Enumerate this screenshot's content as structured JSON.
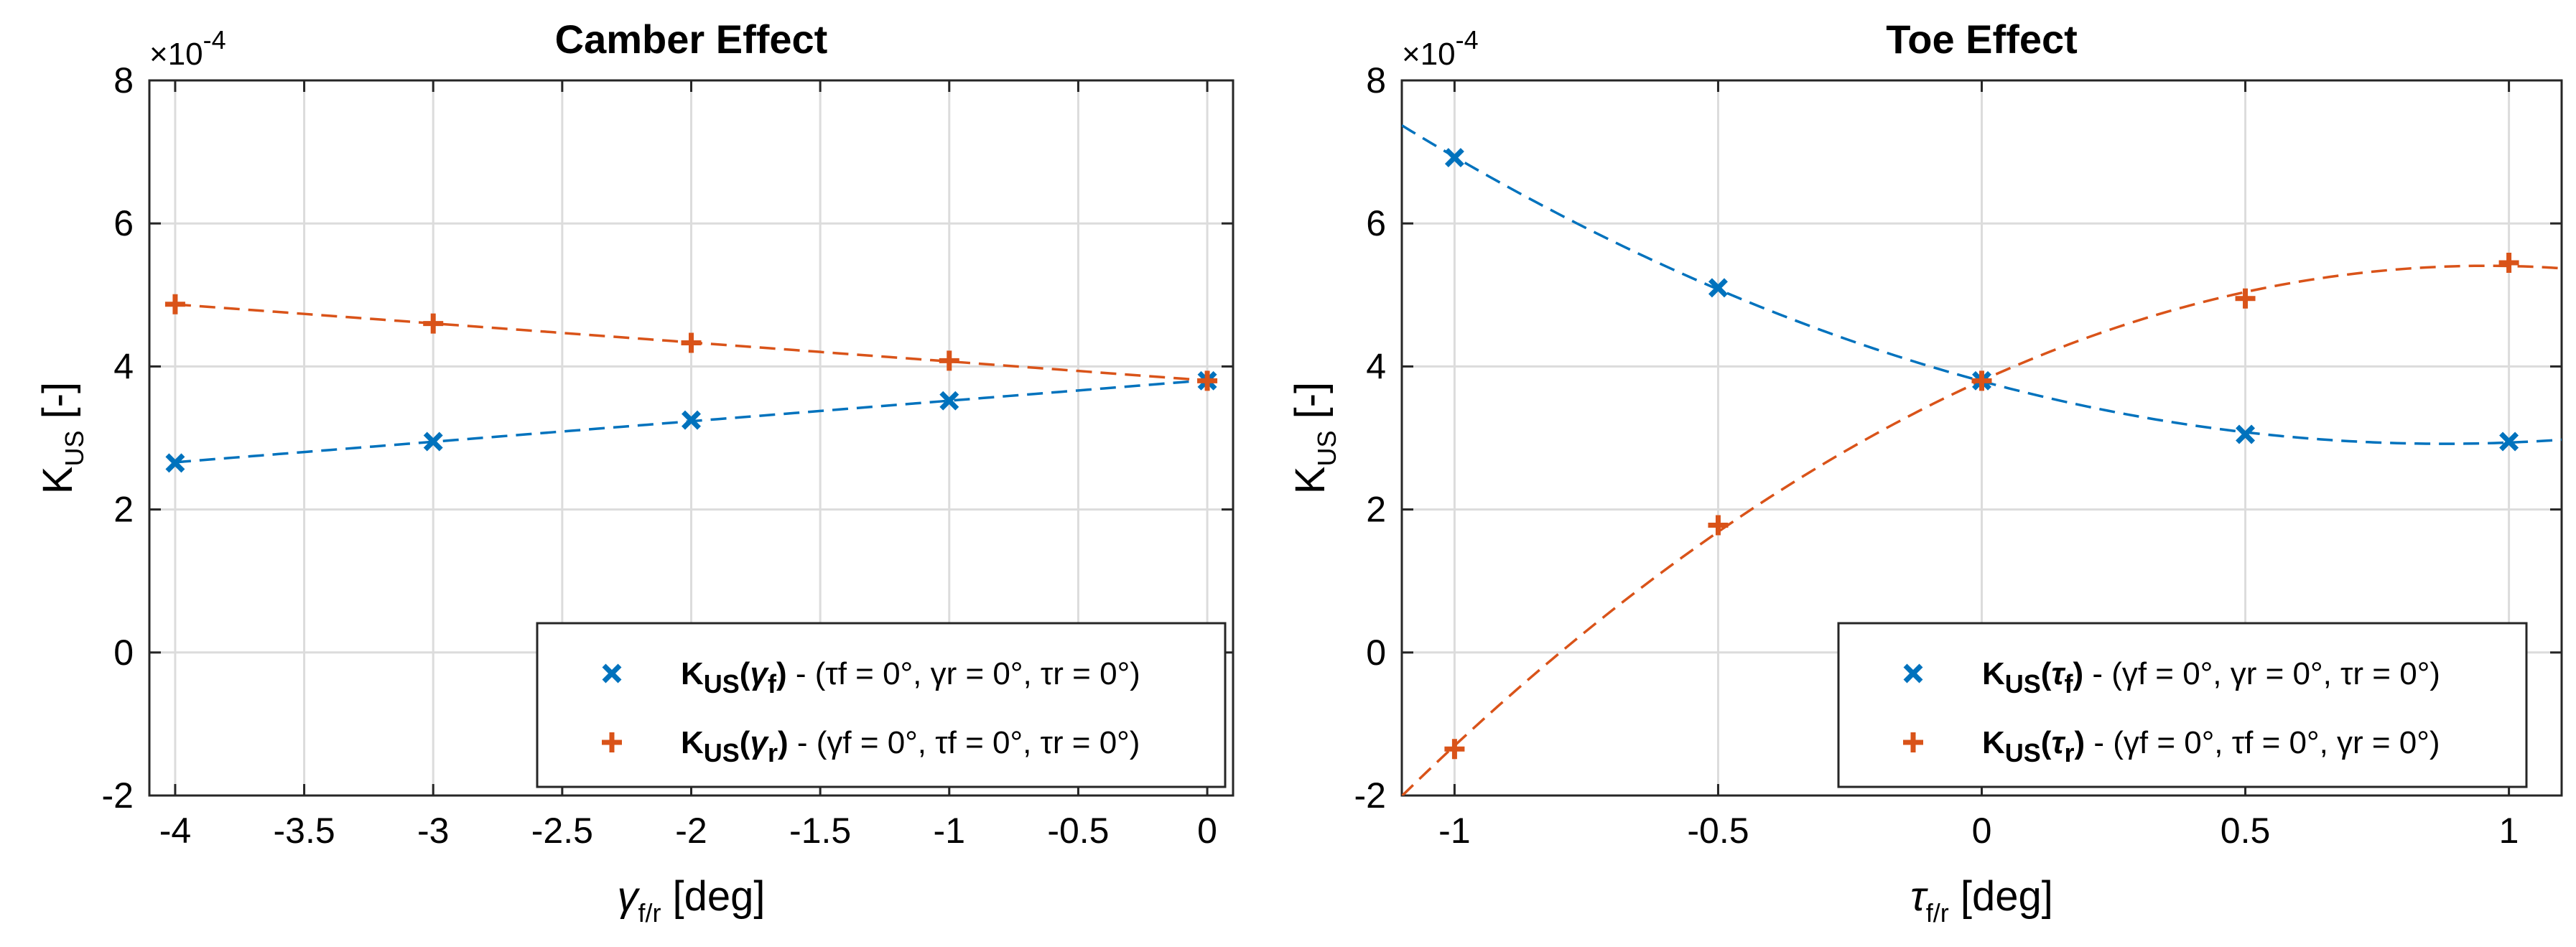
{
  "colors": {
    "blue": "#0072BD",
    "orange": "#D95319"
  },
  "chart_data": [
    {
      "type": "scatter",
      "title": "Camber Effect",
      "xlabel": {
        "symbol": "γ",
        "sub": "f/r",
        "unit": " [deg]"
      },
      "ylabel": {
        "main": "K",
        "sub": "US",
        "unit": " [-]"
      },
      "exponent": {
        "base": "×10",
        "power": "-4"
      },
      "xlim": [
        -4.1,
        0.1
      ],
      "ylim": [
        -2,
        8
      ],
      "xticks": [
        -4,
        -3.5,
        -3,
        -2.5,
        -2,
        -1.5,
        -1,
        -0.5,
        0
      ],
      "xtick_labels": [
        "-4",
        "-3.5",
        "-3",
        "-2.5",
        "-2",
        "-1.5",
        "-1",
        "-0.5",
        "0"
      ],
      "yticks": [
        -2,
        0,
        2,
        4,
        6,
        8
      ],
      "ytick_labels": [
        "-2",
        "0",
        "2",
        "4",
        "6",
        "8"
      ],
      "grid": true,
      "legend_position": "bottom-right",
      "series": [
        {
          "name": "KUS(γf) - (τf = 0°, γr = 0°, τr = 0°)",
          "color": "blue",
          "marker": "x",
          "legend": {
            "k": "K",
            "ksub": "US",
            "open": "(",
            "var": "γ",
            "varsub": "f",
            "close": ")",
            "rest": " - (τf = 0°, γr = 0°, τr = 0°)"
          },
          "x": [
            -4,
            -3,
            -2,
            -1,
            0
          ],
          "y": [
            2.65,
            2.95,
            3.25,
            3.52,
            3.8
          ],
          "fit": {
            "degree": 1,
            "xrange": [
              -4,
              0
            ]
          }
        },
        {
          "name": "KUS(γr) - (γf = 0°, τf = 0°, τr = 0°)",
          "color": "orange",
          "marker": "+",
          "legend": {
            "k": "K",
            "ksub": "US",
            "open": "(",
            "var": "γ",
            "varsub": "r",
            "close": ")",
            "rest": " - (γf = 0°, τf = 0°, τr = 0°)"
          },
          "x": [
            -4,
            -3,
            -2,
            -1,
            0
          ],
          "y": [
            4.87,
            4.6,
            4.33,
            4.08,
            3.8
          ],
          "fit": {
            "degree": 1,
            "xrange": [
              -4,
              0
            ]
          }
        }
      ]
    },
    {
      "type": "scatter",
      "title": "Toe Effect",
      "xlabel": {
        "symbol": "τ",
        "sub": "f/r",
        "unit": " [deg]"
      },
      "ylabel": {
        "main": "K",
        "sub": "US",
        "unit": " [-]"
      },
      "exponent": {
        "base": "×10",
        "power": "-4"
      },
      "xlim": [
        -1.1,
        1.1
      ],
      "ylim": [
        -2,
        8
      ],
      "xticks": [
        -1,
        -0.5,
        0,
        0.5,
        1
      ],
      "xtick_labels": [
        "-1",
        "-0.5",
        "0",
        "0.5",
        "1"
      ],
      "yticks": [
        -2,
        0,
        2,
        4,
        6,
        8
      ],
      "ytick_labels": [
        "-2",
        "0",
        "2",
        "4",
        "6",
        "8"
      ],
      "grid": true,
      "legend_position": "bottom-right",
      "series": [
        {
          "name": "KUS(τf) - (γf = 0°, γr = 0°, τr = 0°)",
          "color": "blue",
          "marker": "x",
          "legend": {
            "k": "K",
            "ksub": "US",
            "open": "(",
            "var": "τ",
            "varsub": "f",
            "close": ")",
            "rest": " - (γf = 0°, γr = 0°, τr = 0°)"
          },
          "x": [
            -1,
            -0.5,
            0,
            0.5,
            1
          ],
          "y": [
            6.92,
            5.1,
            3.8,
            3.05,
            2.95
          ],
          "fit": {
            "degree": 2,
            "xrange": [
              -1.1,
              1.1
            ]
          }
        },
        {
          "name": "KUS(τr) - (γf = 0°, τf = 0°, γr = 0°)",
          "color": "orange",
          "marker": "+",
          "legend": {
            "k": "K",
            "ksub": "US",
            "open": "(",
            "var": "τ",
            "varsub": "r",
            "close": ")",
            "rest": " - (γf = 0°, τf = 0°, γr = 0°)"
          },
          "x": [
            -1,
            -0.5,
            0,
            0.5,
            1
          ],
          "y": [
            -1.35,
            1.78,
            3.8,
            4.95,
            5.45
          ],
          "fit": {
            "degree": 2,
            "xrange": [
              -1.1,
              1.1
            ]
          }
        }
      ]
    }
  ]
}
